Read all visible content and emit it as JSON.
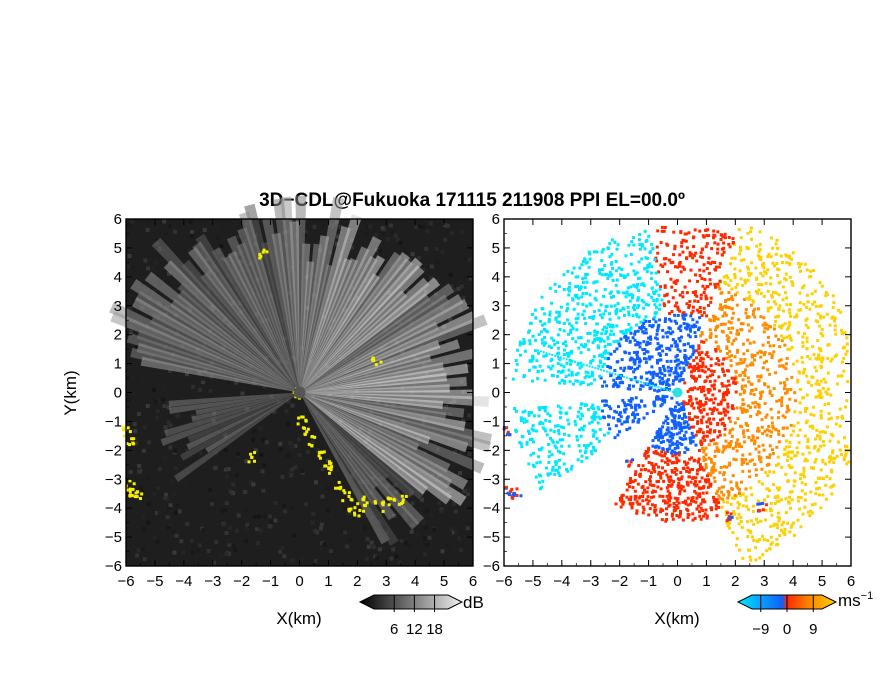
{
  "chart_data": {
    "type": "heatmap",
    "title": "3D−CDL@Fukuoka 171115 211908 PPI EL=00.0º",
    "panels": [
      {
        "name": "left",
        "quantity": "intensity",
        "xlabel": "X(km)",
        "ylabel": "Y(km)",
        "xlim": [
          -6,
          6
        ],
        "ylim": [
          -6,
          6
        ],
        "colorbar": {
          "label": "dB",
          "ticks": [
            "6",
            "12",
            "18"
          ],
          "range": [
            0,
            22
          ]
        }
      },
      {
        "name": "right",
        "quantity": "velocity",
        "xlabel": "X(km)",
        "ylabel": "",
        "xlim": [
          -6,
          6
        ],
        "ylim": [
          -6,
          6
        ],
        "colorbar": {
          "label": "ms",
          "label_exp": "−1",
          "ticks": [
            "−9",
            "0",
            "9"
          ],
          "range": [
            -12,
            12
          ]
        }
      }
    ],
    "x_ticks": [
      "−6",
      "−5",
      "−4",
      "−3",
      "−2",
      "−1",
      "0",
      "1",
      "2",
      "3",
      "4",
      "5",
      "6"
    ],
    "y_ticks": [
      "6",
      "5",
      "4",
      "3",
      "2",
      "1",
      "0",
      "−1",
      "−2",
      "−3",
      "−4",
      "−5",
      "−6"
    ],
    "highlight_color": "#f5f000",
    "velocity_colors": [
      "#00e8ff",
      "#1060ff",
      "#ff2a00",
      "#ff8c00",
      "#ffd000"
    ],
    "grid": false
  }
}
